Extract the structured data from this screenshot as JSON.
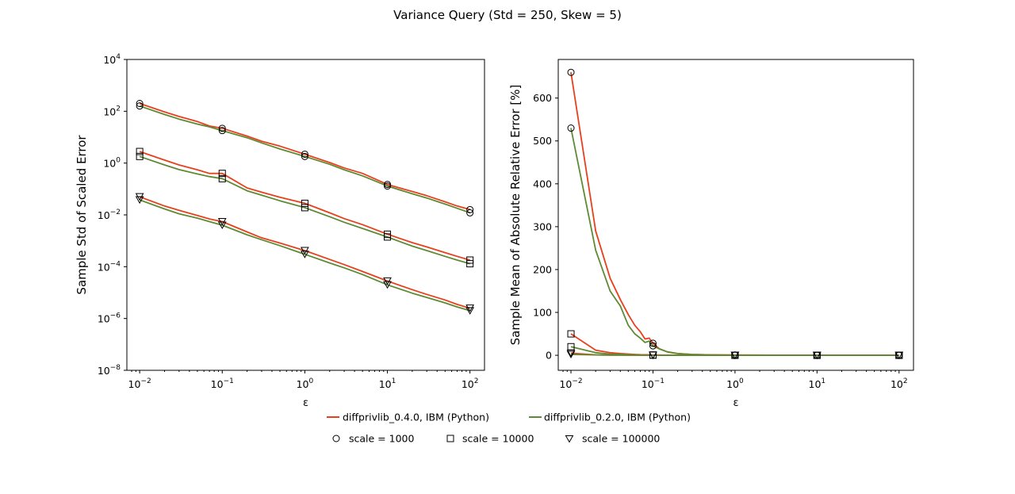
{
  "title": "Variance Query (Std = 250, Skew = 5)",
  "colors": {
    "v040": "#e8401c",
    "v020": "#5f8a34",
    "marker_edge": "#000000"
  },
  "legend": {
    "lines": [
      {
        "label": "diffprivlib_0.4.0, IBM (Python)",
        "color": "#e8401c"
      },
      {
        "label": "diffprivlib_0.2.0, IBM (Python)",
        "color": "#5f8a34"
      }
    ],
    "markers": [
      {
        "label": "scale = 1000",
        "marker": "circle"
      },
      {
        "label": "scale = 10000",
        "marker": "square"
      },
      {
        "label": "scale = 100000",
        "marker": "triangle-down"
      }
    ]
  },
  "chart_data": [
    {
      "type": "line",
      "title": "",
      "xlabel": "ε",
      "ylabel": "Sample Std of Scaled Error",
      "xscale": "log",
      "yscale": "log",
      "xlim": [
        0.007,
        150
      ],
      "ylim": [
        1e-08,
        10000
      ],
      "xticks": [
        0.01,
        0.1,
        1,
        10,
        100
      ],
      "xtick_labels": [
        {
          "base": "10",
          "exp": "−2"
        },
        {
          "base": "10",
          "exp": "−1"
        },
        {
          "base": "10",
          "exp": "0"
        },
        {
          "base": "10",
          "exp": "1"
        },
        {
          "base": "10",
          "exp": "2"
        }
      ],
      "yticks": [
        1e-08,
        1e-06,
        0.0001,
        0.01,
        1,
        100,
        10000
      ],
      "ytick_labels": [
        {
          "base": "10",
          "exp": "−8"
        },
        {
          "base": "10",
          "exp": "−6"
        },
        {
          "base": "10",
          "exp": "−4"
        },
        {
          "base": "10",
          "exp": "−2"
        },
        {
          "base": "10",
          "exp": "0"
        },
        {
          "base": "10",
          "exp": "2"
        },
        {
          "base": "10",
          "exp": "4"
        }
      ],
      "x": [
        0.01,
        0.02,
        0.03,
        0.05,
        0.07,
        0.1,
        0.2,
        0.3,
        0.5,
        1,
        2,
        3,
        5,
        10,
        20,
        30,
        50,
        70,
        100
      ],
      "series": [
        {
          "name": "diffprivlib_0.4.0, IBM (Python)",
          "version": "v040",
          "scale": 1000,
          "marker": "circle",
          "values": [
            200,
            95,
            63,
            40,
            27,
            22,
            11,
            7.0,
            4.5,
            2.2,
            1.05,
            0.65,
            0.4,
            0.15,
            0.08,
            0.055,
            0.032,
            0.022,
            0.016
          ]
        },
        {
          "name": "diffprivlib_0.2.0, IBM (Python)",
          "version": "v020",
          "scale": 1000,
          "marker": "circle",
          "values": [
            160,
            75,
            50,
            32,
            25,
            18,
            9.5,
            6.0,
            3.5,
            1.8,
            0.9,
            0.55,
            0.32,
            0.13,
            0.065,
            0.045,
            0.026,
            0.018,
            0.012
          ]
        },
        {
          "name": "diffprivlib_0.4.0, IBM (Python)",
          "version": "v040",
          "scale": 10000,
          "marker": "square",
          "values": [
            2.8,
            1.3,
            0.85,
            0.55,
            0.4,
            0.4,
            0.11,
            0.075,
            0.048,
            0.028,
            0.012,
            0.0072,
            0.0042,
            0.0018,
            0.00085,
            0.00058,
            0.00035,
            0.00025,
            0.00018
          ]
        },
        {
          "name": "diffprivlib_0.2.0, IBM (Python)",
          "version": "v020",
          "scale": 10000,
          "marker": "square",
          "values": [
            1.8,
            0.85,
            0.56,
            0.38,
            0.3,
            0.25,
            0.085,
            0.058,
            0.035,
            0.019,
            0.0085,
            0.0052,
            0.003,
            0.0014,
            0.00062,
            0.00042,
            0.00025,
            0.00018,
            0.00013
          ]
        },
        {
          "name": "diffprivlib_0.4.0, IBM (Python)",
          "version": "v040",
          "scale": 100000,
          "marker": "triangle-down",
          "values": [
            0.05,
            0.022,
            0.015,
            0.0095,
            0.007,
            0.0055,
            0.0022,
            0.0013,
            0.00082,
            0.00042,
            0.00019,
            0.00012,
            6.5e-05,
            2.8e-05,
            1.3e-05,
            8.5e-06,
            5.2e-06,
            3.5e-06,
            2.5e-06
          ]
        },
        {
          "name": "diffprivlib_0.2.0, IBM (Python)",
          "version": "v020",
          "scale": 100000,
          "marker": "triangle-down",
          "values": [
            0.038,
            0.017,
            0.011,
            0.0075,
            0.0055,
            0.004,
            0.0017,
            0.0011,
            0.00065,
            0.0003,
            0.00014,
            9e-05,
            5e-05,
            2e-05,
            9.5e-06,
            6.5e-06,
            4e-06,
            2.8e-06,
            2e-06
          ]
        }
      ],
      "marker_x": [
        0.01,
        0.1,
        1,
        10,
        100
      ]
    },
    {
      "type": "line",
      "title": "",
      "xlabel": "ε",
      "ylabel": "Sample Mean of Absolute Relative Error [%]",
      "xscale": "log",
      "yscale": "linear",
      "xlim": [
        0.007,
        150
      ],
      "ylim": [
        -35,
        690
      ],
      "xticks": [
        0.01,
        0.1,
        1,
        10,
        100
      ],
      "xtick_labels": [
        {
          "base": "10",
          "exp": "−2"
        },
        {
          "base": "10",
          "exp": "−1"
        },
        {
          "base": "10",
          "exp": "0"
        },
        {
          "base": "10",
          "exp": "1"
        },
        {
          "base": "10",
          "exp": "2"
        }
      ],
      "yticks": [
        0,
        100,
        200,
        300,
        400,
        500,
        600
      ],
      "ytick_labels": [
        "0",
        "100",
        "200",
        "300",
        "400",
        "500",
        "600"
      ],
      "x": [
        0.01,
        0.02,
        0.03,
        0.04,
        0.05,
        0.06,
        0.07,
        0.08,
        0.09,
        0.1,
        0.12,
        0.15,
        0.2,
        0.3,
        0.5,
        1,
        10,
        100
      ],
      "series": [
        {
          "name": "diffprivlib_0.4.0, IBM (Python)",
          "version": "v040",
          "scale": 1000,
          "marker": "circle",
          "values": [
            660,
            290,
            180,
            130,
            95,
            70,
            55,
            38,
            40,
            28,
            15,
            8,
            4,
            2,
            1,
            0.5,
            0.2,
            0.1
          ]
        },
        {
          "name": "diffprivlib_0.2.0, IBM (Python)",
          "version": "v020",
          "scale": 1000,
          "marker": "circle",
          "values": [
            530,
            245,
            150,
            115,
            70,
            50,
            40,
            30,
            33,
            22,
            15,
            8,
            4,
            2,
            1,
            0.5,
            0.2,
            0.1
          ]
        },
        {
          "name": "diffprivlib_0.4.0, IBM (Python)",
          "version": "v040",
          "scale": 10000,
          "marker": "square",
          "values": [
            50,
            12,
            6,
            4,
            3,
            2,
            1.5,
            1.2,
            1,
            0.8,
            0.5,
            0.3,
            0.2,
            0.1,
            0.05,
            0.03,
            0.01,
            0.01
          ]
        },
        {
          "name": "diffprivlib_0.2.0, IBM (Python)",
          "version": "v020",
          "scale": 10000,
          "marker": "square",
          "values": [
            20,
            6,
            3,
            2,
            1.5,
            1,
            0.8,
            0.6,
            0.5,
            0.4,
            0.3,
            0.2,
            0.1,
            0.05,
            0.03,
            0.02,
            0.01,
            0.01
          ]
        },
        {
          "name": "diffprivlib_0.4.0, IBM (Python)",
          "version": "v040",
          "scale": 100000,
          "marker": "triangle-down",
          "values": [
            5,
            1,
            0.5,
            0.4,
            0.3,
            0.2,
            0.15,
            0.1,
            0.1,
            0.08,
            0.05,
            0.03,
            0.02,
            0.01,
            0.01,
            0.01,
            0.01,
            0.01
          ]
        },
        {
          "name": "diffprivlib_0.2.0, IBM (Python)",
          "version": "v020",
          "scale": 100000,
          "marker": "triangle-down",
          "values": [
            2,
            0.8,
            0.4,
            0.3,
            0.2,
            0.15,
            0.1,
            0.08,
            0.08,
            0.06,
            0.04,
            0.02,
            0.01,
            0.01,
            0.01,
            0.01,
            0.01,
            0.01
          ]
        }
      ],
      "marker_x": [
        0.01,
        0.1,
        1,
        10,
        100
      ]
    }
  ]
}
